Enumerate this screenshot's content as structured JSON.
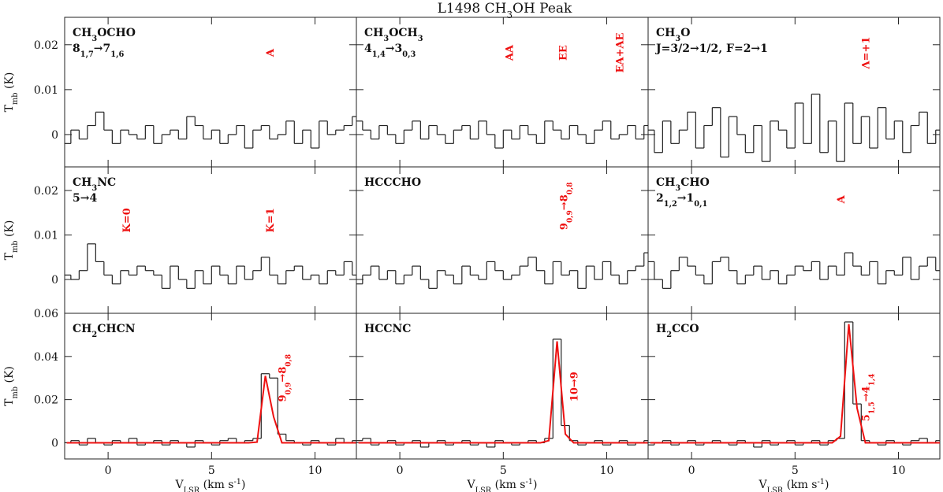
{
  "figure": {
    "title": [
      "L1498 CH",
      {
        "sub": "3"
      },
      "OH Peak"
    ],
    "xlabel": [
      "V",
      {
        "sub": "LSR"
      },
      " (km s",
      {
        "sup": "-1"
      },
      ")"
    ],
    "ylabel": [
      "T",
      {
        "sub": "mb"
      },
      " (K)"
    ]
  },
  "chart_data": [
    {
      "type": "step",
      "label": [
        [
          "CH",
          {
            "sub": "3"
          },
          "OCHO"
        ],
        [
          "8",
          {
            "sub": "1,7"
          },
          "→7",
          {
            "sub": "1,6"
          }
        ]
      ],
      "x": [
        -2.0,
        -1.6,
        -1.2,
        -0.8,
        -0.4,
        0,
        0.4,
        0.8,
        1.2,
        1.6,
        2,
        2.4,
        2.8,
        3.2,
        3.6,
        4,
        4.4,
        4.8,
        5.2,
        5.6,
        6,
        6.4,
        6.8,
        7.2,
        7.6,
        8,
        8.4,
        8.8,
        9.2,
        9.6,
        10,
        10.4,
        10.8,
        11.2,
        11.6,
        12
      ],
      "values": [
        -0.002,
        0.001,
        -0.001,
        0.002,
        0.005,
        0.001,
        -0.002,
        0.001,
        0,
        -0.001,
        0.002,
        -0.002,
        0,
        0.001,
        -0.001,
        0.004,
        0.002,
        -0.001,
        0.001,
        -0.002,
        0,
        0.002,
        -0.003,
        0.001,
        0.002,
        -0.001,
        0,
        0.003,
        -0.002,
        0.001,
        -0.003,
        0.003,
        0,
        0.001,
        0.002,
        0.004
      ],
      "color": "#222222",
      "xlim": [
        -2.1,
        12
      ],
      "xticks": [
        0,
        5,
        10
      ],
      "ylim": [
        -0.0072,
        0.0261
      ],
      "yticks": [
        0,
        0.01,
        0.02
      ],
      "annotation_color": "#ee1111",
      "annotations": [
        {
          "x": 7.8,
          "y": 0.0182,
          "text": [
            "A"
          ]
        }
      ]
    },
    {
      "type": "step",
      "label": [
        [
          "CH",
          {
            "sub": "3"
          },
          "OCH",
          {
            "sub": "3"
          }
        ],
        [
          "4",
          {
            "sub": "1,4"
          },
          "→3",
          {
            "sub": "0,3"
          }
        ]
      ],
      "x": [
        -2.0,
        -1.6,
        -1.2,
        -0.8,
        -0.4,
        0,
        0.4,
        0.8,
        1.2,
        1.6,
        2,
        2.4,
        2.8,
        3.2,
        3.6,
        4,
        4.4,
        4.8,
        5.2,
        5.6,
        6,
        6.4,
        6.8,
        7.2,
        7.6,
        8,
        8.4,
        8.8,
        9.2,
        9.6,
        10,
        10.4,
        10.8,
        11.2,
        11.6,
        12
      ],
      "values": [
        0.003,
        0.001,
        -0.001,
        0.002,
        0,
        -0.002,
        0.001,
        0.003,
        -0.001,
        0.002,
        0,
        -0.002,
        0.001,
        0.002,
        -0.001,
        0.003,
        0,
        -0.003,
        0.001,
        -0.001,
        0.002,
        0,
        -0.002,
        0.003,
        0.001,
        -0.001,
        0.002,
        0,
        -0.002,
        0.001,
        0.003,
        -0.001,
        0,
        0.002,
        -0.001,
        0.002
      ],
      "color": "#222222",
      "xlim": [
        -2.1,
        12
      ],
      "xticks": [
        0,
        5,
        10
      ],
      "ylim": [
        -0.0072,
        0.0261
      ],
      "yticks": [
        0,
        0.01,
        0.02
      ],
      "annotation_color": "#ee1111",
      "annotations": [
        {
          "x": 5.27,
          "y": 0.0182,
          "text": [
            "AA"
          ]
        },
        {
          "x": 7.86,
          "y": 0.0182,
          "text": [
            "EE"
          ]
        },
        {
          "x": 10.6,
          "y": 0.0182,
          "text": [
            "EA+AE"
          ]
        }
      ]
    },
    {
      "type": "step",
      "label": [
        [
          "CH",
          {
            "sub": "3"
          },
          "O"
        ],
        [
          "J=3/2→1/2, F=2→1"
        ]
      ],
      "x": [
        -2.0,
        -1.6,
        -1.2,
        -0.8,
        -0.4,
        0,
        0.4,
        0.8,
        1.2,
        1.6,
        2,
        2.4,
        2.8,
        3.2,
        3.6,
        4,
        4.4,
        4.8,
        5.2,
        5.6,
        6,
        6.4,
        6.8,
        7.2,
        7.6,
        8,
        8.4,
        8.8,
        9.2,
        9.6,
        10,
        10.4,
        10.8,
        11.2,
        11.6,
        12
      ],
      "values": [
        0.001,
        -0.004,
        0.003,
        -0.002,
        0.001,
        0.005,
        -0.003,
        0.002,
        0.006,
        -0.005,
        0.004,
        0,
        -0.004,
        0.002,
        -0.006,
        0.003,
        0.001,
        -0.003,
        0.007,
        -0.002,
        0.009,
        -0.004,
        0.003,
        -0.006,
        0.007,
        -0.002,
        0.004,
        -0.003,
        0.006,
        -0.001,
        0.003,
        -0.004,
        0.002,
        0.005,
        -0.002,
        0.001
      ],
      "color": "#222222",
      "xlim": [
        -2.1,
        12
      ],
      "xticks": [
        0,
        5,
        10
      ],
      "ylim": [
        -0.0072,
        0.0261
      ],
      "yticks": [
        0,
        0.01,
        0.02
      ],
      "annotation_color": "#ee1111",
      "annotations": [
        {
          "x": 8.4,
          "y": 0.0182,
          "text": [
            "Λ=+1"
          ]
        }
      ]
    },
    {
      "type": "step",
      "label": [
        [
          "CH",
          {
            "sub": "3"
          },
          "NC"
        ],
        [
          "5→4"
        ]
      ],
      "x": [
        -2.0,
        -1.6,
        -1.2,
        -0.8,
        -0.4,
        0,
        0.4,
        0.8,
        1.2,
        1.6,
        2,
        2.4,
        2.8,
        3.2,
        3.6,
        4,
        4.4,
        4.8,
        5.2,
        5.6,
        6,
        6.4,
        6.8,
        7.2,
        7.6,
        8,
        8.4,
        8.8,
        9.2,
        9.6,
        10,
        10.4,
        10.8,
        11.2,
        11.6,
        12
      ],
      "values": [
        0.001,
        0,
        0.002,
        0.008,
        0.004,
        0.001,
        -0.001,
        0.002,
        0.001,
        0.003,
        0.002,
        0.001,
        -0.002,
        0.003,
        0,
        -0.002,
        0.002,
        -0.001,
        0.003,
        0.001,
        -0.001,
        0.003,
        0,
        0.002,
        0.005,
        0.001,
        -0.001,
        0.002,
        0.003,
        0,
        0.001,
        -0.001,
        0.002,
        0.001,
        0.004,
        0.001
      ],
      "color": "#222222",
      "xlim": [
        -2.1,
        12
      ],
      "xticks": [
        0,
        5,
        10
      ],
      "ylim": [
        -0.0076,
        0.0253
      ],
      "yticks": [
        0,
        0.01,
        0.02
      ],
      "annotation_color": "#ee1111",
      "annotations": [
        {
          "x": 0.88,
          "y": 0.0133,
          "text": [
            "K=0"
          ]
        },
        {
          "x": 7.8,
          "y": 0.0133,
          "text": [
            "K=1"
          ]
        }
      ]
    },
    {
      "type": "step",
      "label": [
        [
          "HCCCHO"
        ]
      ],
      "x": [
        -2.0,
        -1.6,
        -1.2,
        -0.8,
        -0.4,
        0,
        0.4,
        0.8,
        1.2,
        1.6,
        2,
        2.4,
        2.8,
        3.2,
        3.6,
        4,
        4.4,
        4.8,
        5.2,
        5.6,
        6,
        6.4,
        6.8,
        7.2,
        7.6,
        8,
        8.4,
        8.8,
        9.2,
        9.6,
        10,
        10.4,
        10.8,
        11.2,
        11.6,
        12
      ],
      "values": [
        -0.001,
        0.001,
        0.003,
        0,
        0.002,
        -0.001,
        0.001,
        0.003,
        0,
        -0.002,
        0.002,
        0.001,
        -0.001,
        0.003,
        0.001,
        0,
        0.004,
        0.002,
        0,
        0.001,
        0.003,
        0.005,
        0.002,
        -0.001,
        0.004,
        0.001,
        0.002,
        -0.002,
        0.003,
        0,
        0.004,
        0.001,
        -0.001,
        0.002,
        0.003,
        0.006
      ],
      "color": "#222222",
      "xlim": [
        -2.1,
        12
      ],
      "xticks": [
        0,
        5,
        10
      ],
      "ylim": [
        -0.0076,
        0.0253
      ],
      "yticks": [
        0,
        0.01,
        0.02
      ],
      "annotation_color": "#ee1111",
      "annotations": [
        {
          "x": 7.9,
          "y": 0.0165,
          "text": [
            "9",
            {
              "sub": "0,9"
            },
            "→8",
            {
              "sub": "0,8"
            }
          ]
        }
      ]
    },
    {
      "type": "step",
      "label": [
        [
          "CH",
          {
            "sub": "3"
          },
          "CHO"
        ],
        [
          "2",
          {
            "sub": "1,2"
          },
          "→1",
          {
            "sub": "0,1"
          }
        ]
      ],
      "x": [
        -2.0,
        -1.6,
        -1.2,
        -0.8,
        -0.4,
        0,
        0.4,
        0.8,
        1.2,
        1.6,
        2,
        2.4,
        2.8,
        3.2,
        3.6,
        4,
        4.4,
        4.8,
        5.2,
        5.6,
        6,
        6.4,
        6.8,
        7.2,
        7.6,
        8,
        8.4,
        8.8,
        9.2,
        9.6,
        10,
        10.4,
        10.8,
        11.2,
        11.6,
        12
      ],
      "values": [
        0.004,
        0,
        -0.002,
        0.002,
        0.005,
        0.003,
        0.001,
        -0.001,
        0.004,
        0.005,
        0.002,
        -0.001,
        0.001,
        0.003,
        0,
        0.002,
        -0.001,
        0.001,
        0.003,
        0.002,
        0.004,
        0,
        0.003,
        0.001,
        0.006,
        0.003,
        0.001,
        0.004,
        -0.001,
        0.002,
        0.001,
        0.005,
        0,
        0.003,
        0.005,
        0.002
      ],
      "color": "#222222",
      "xlim": [
        -2.1,
        12
      ],
      "xticks": [
        0,
        5,
        10
      ],
      "ylim": [
        -0.0076,
        0.0253
      ],
      "yticks": [
        0,
        0.01,
        0.02
      ],
      "annotation_color": "#ee1111",
      "annotations": [
        {
          "x": 7.2,
          "y": 0.018,
          "text": [
            "A"
          ]
        }
      ]
    },
    {
      "type": "step",
      "label": [
        [
          "CH",
          {
            "sub": "2"
          },
          "CHCN"
        ]
      ],
      "x": [
        -2.0,
        -1.6,
        -1.2,
        -0.8,
        -0.4,
        0,
        0.4,
        0.8,
        1.2,
        1.6,
        2,
        2.4,
        2.8,
        3.2,
        3.6,
        4,
        4.4,
        4.8,
        5.2,
        5.6,
        6,
        6.4,
        6.8,
        7.2,
        7.6,
        8,
        8.4,
        8.8,
        9.2,
        9.6,
        10,
        10.4,
        10.8,
        11.2,
        11.6,
        12
      ],
      "values": [
        0,
        0.001,
        -0.001,
        0.002,
        0,
        -0.001,
        0.001,
        0,
        0.002,
        -0.001,
        0,
        0.001,
        -0.001,
        0.001,
        0,
        -0.002,
        0.001,
        0,
        -0.001,
        0.001,
        0.002,
        0,
        0.001,
        0.002,
        0.032,
        0.03,
        0.004,
        0.001,
        0,
        -0.001,
        0.001,
        0,
        -0.001,
        0.002,
        0,
        0.001
      ],
      "fit": [
        0,
        0,
        0,
        0,
        0,
        0,
        0,
        0,
        0,
        0,
        0,
        0,
        0,
        0,
        0,
        0,
        0,
        0,
        0,
        0,
        0,
        0,
        0,
        0.0003,
        0.031,
        0.012,
        0,
        0,
        0,
        0,
        0,
        0,
        0,
        0,
        0,
        0
      ],
      "color": "#222222",
      "fit_color": "#ee1111",
      "xlim": [
        -2.1,
        12
      ],
      "xticks": [
        0,
        5,
        10
      ],
      "ylim": [
        -0.0075,
        0.06
      ],
      "yticks": [
        0,
        0.02,
        0.04,
        0.06
      ],
      "annotation_color": "#ee1111",
      "annotations": [
        {
          "x": 8.4,
          "y": 0.03,
          "text": [
            "9",
            {
              "sub": "0,9"
            },
            "→8",
            {
              "sub": "0,8"
            }
          ]
        }
      ]
    },
    {
      "type": "step",
      "label": [
        [
          "HCCNC"
        ]
      ],
      "x": [
        -2.0,
        -1.6,
        -1.2,
        -0.8,
        -0.4,
        0,
        0.4,
        0.8,
        1.2,
        1.6,
        2,
        2.4,
        2.8,
        3.2,
        3.6,
        4,
        4.4,
        4.8,
        5.2,
        5.6,
        6,
        6.4,
        6.8,
        7.2,
        7.6,
        8,
        8.4,
        8.8,
        9.2,
        9.6,
        10,
        10.4,
        10.8,
        11.2,
        11.6,
        12
      ],
      "values": [
        0.001,
        0.002,
        -0.001,
        0,
        0.001,
        -0.001,
        0,
        0.001,
        -0.002,
        0,
        0.001,
        -0.001,
        0,
        0.001,
        -0.001,
        0,
        -0.002,
        0.001,
        0,
        -0.001,
        0,
        0.001,
        0,
        0.002,
        0.048,
        0.008,
        0.001,
        -0.001,
        0,
        0.001,
        -0.001,
        0,
        0.001,
        -0.001,
        0,
        0.001
      ],
      "fit": [
        0,
        0,
        0,
        0,
        0,
        0,
        0,
        0,
        0,
        0,
        0,
        0,
        0,
        0,
        0,
        0,
        0,
        0,
        0,
        0,
        0,
        0,
        0,
        0.001,
        0.047,
        0.004,
        0,
        0,
        0,
        0,
        0,
        0,
        0,
        0,
        0,
        0
      ],
      "color": "#222222",
      "fit_color": "#ee1111",
      "xlim": [
        -2.1,
        12
      ],
      "xticks": [
        0,
        5,
        10
      ],
      "ylim": [
        -0.0075,
        0.06
      ],
      "yticks": [
        0,
        0.02,
        0.04,
        0.06
      ],
      "annotation_color": "#ee1111",
      "annotations": [
        {
          "x": 8.4,
          "y": 0.026,
          "text": [
            "10→9"
          ]
        }
      ]
    },
    {
      "type": "step",
      "label": [
        [
          "H",
          {
            "sub": "2"
          },
          "CCO"
        ]
      ],
      "x": [
        -2.0,
        -1.6,
        -1.2,
        -0.8,
        -0.4,
        0,
        0.4,
        0.8,
        1.2,
        1.6,
        2,
        2.4,
        2.8,
        3.2,
        3.6,
        4,
        4.4,
        4.8,
        5.2,
        5.6,
        6,
        6.4,
        6.8,
        7.2,
        7.6,
        8,
        8.4,
        8.8,
        9.2,
        9.6,
        10,
        10.4,
        10.8,
        11.2,
        11.6,
        12
      ],
      "values": [
        -0.001,
        0,
        0.001,
        -0.001,
        0,
        0.001,
        -0.001,
        0,
        0.001,
        0,
        -0.001,
        0.001,
        0,
        -0.002,
        0.001,
        -0.001,
        0,
        0.001,
        -0.001,
        0,
        0.001,
        -0.001,
        0.001,
        0.002,
        0.056,
        0.018,
        0.001,
        0,
        -0.001,
        0.001,
        0,
        -0.001,
        0.001,
        0.002,
        0,
        0.001
      ],
      "fit": [
        0,
        0,
        0,
        0,
        0,
        0,
        0,
        0,
        0,
        0,
        0,
        0,
        0,
        0,
        0,
        0,
        0,
        0,
        0,
        0,
        0,
        0,
        0,
        0.003,
        0.055,
        0.016,
        0,
        0,
        0,
        0,
        0,
        0,
        0,
        0,
        0,
        0
      ],
      "color": "#222222",
      "fit_color": "#ee1111",
      "xlim": [
        -2.1,
        12
      ],
      "xticks": [
        0,
        5,
        10
      ],
      "ylim": [
        -0.0075,
        0.06
      ],
      "yticks": [
        0,
        0.02,
        0.04,
        0.06
      ],
      "annotation_color": "#ee1111",
      "annotations": [
        {
          "x": 8.4,
          "y": 0.021,
          "text": [
            "5",
            {
              "sub": "1,5"
            },
            "→4",
            {
              "sub": "1,4"
            }
          ]
        }
      ]
    }
  ]
}
